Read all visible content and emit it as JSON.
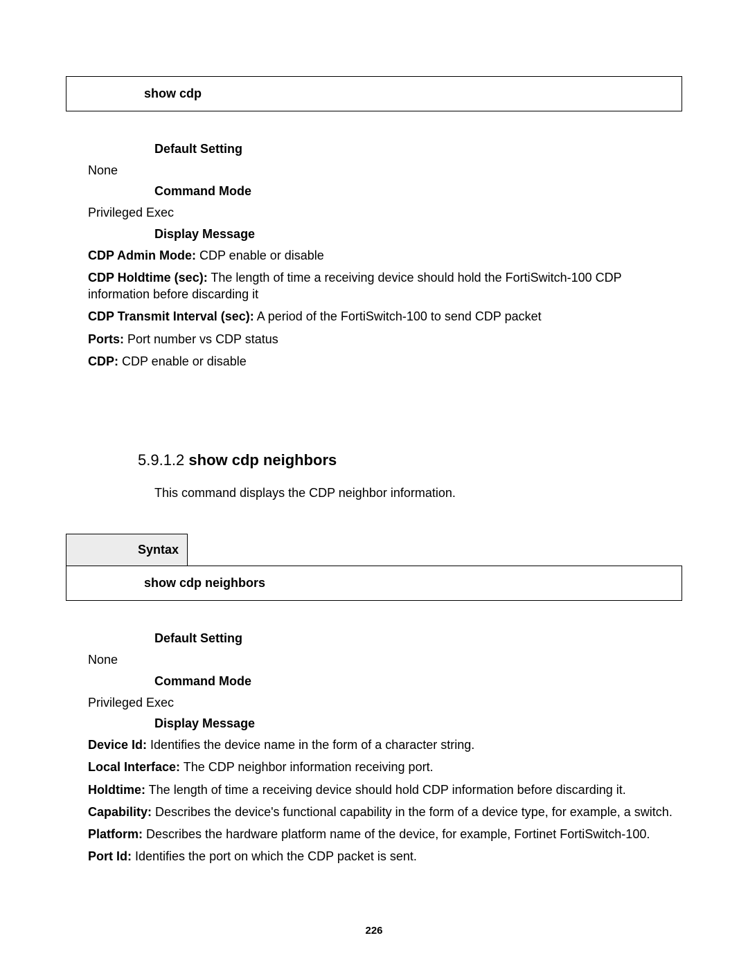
{
  "page_number": "226",
  "box1": {
    "command": "show cdp"
  },
  "sect1": {
    "default_heading": "Default Setting",
    "default_value": "None",
    "mode_heading": "Command Mode",
    "mode_value": "Privileged Exec",
    "display_heading": "Display Message",
    "items": [
      {
        "term": "CDP Admin Mode:",
        "desc": " CDP enable or disable"
      },
      {
        "term": "CDP Holdtime (sec):",
        "desc": " The length of time a receiving device should hold the FortiSwitch-100 CDP information before discarding it"
      },
      {
        "term": "CDP Transmit Interval (sec):",
        "desc": " A period of the FortiSwitch-100 to send CDP packet"
      },
      {
        "term": "Ports:",
        "desc": " Port number vs CDP status"
      },
      {
        "term": "CDP:",
        "desc": " CDP enable or disable"
      }
    ]
  },
  "sect2": {
    "number": "5.9.1.2 ",
    "title": "show cdp neighbors",
    "desc": "This command displays the CDP neighbor information.",
    "syntax_label": "Syntax",
    "syntax_command": "show cdp neighbors",
    "default_heading": "Default Setting",
    "default_value": "None",
    "mode_heading": "Command Mode",
    "mode_value": "Privileged Exec",
    "display_heading": "Display Message",
    "items": [
      {
        "term": "Device Id:",
        "desc": " Identifies the device name in the form of a character string."
      },
      {
        "term": "Local Interface:",
        "desc": " The CDP neighbor information receiving port."
      },
      {
        "term": "Holdtime:",
        "desc": " The length of time a receiving device should hold CDP information before discarding it."
      },
      {
        "term": "Capability:",
        "desc": " Describes the device's functional capability in the form of a device type, for example, a switch."
      },
      {
        "term": "Platform:",
        "desc": " Describes the hardware platform name of the device, for example, Fortinet FortiSwitch-100."
      },
      {
        "term": "Port Id:",
        "desc": " Identifies the port on which the CDP packet is sent."
      }
    ]
  }
}
